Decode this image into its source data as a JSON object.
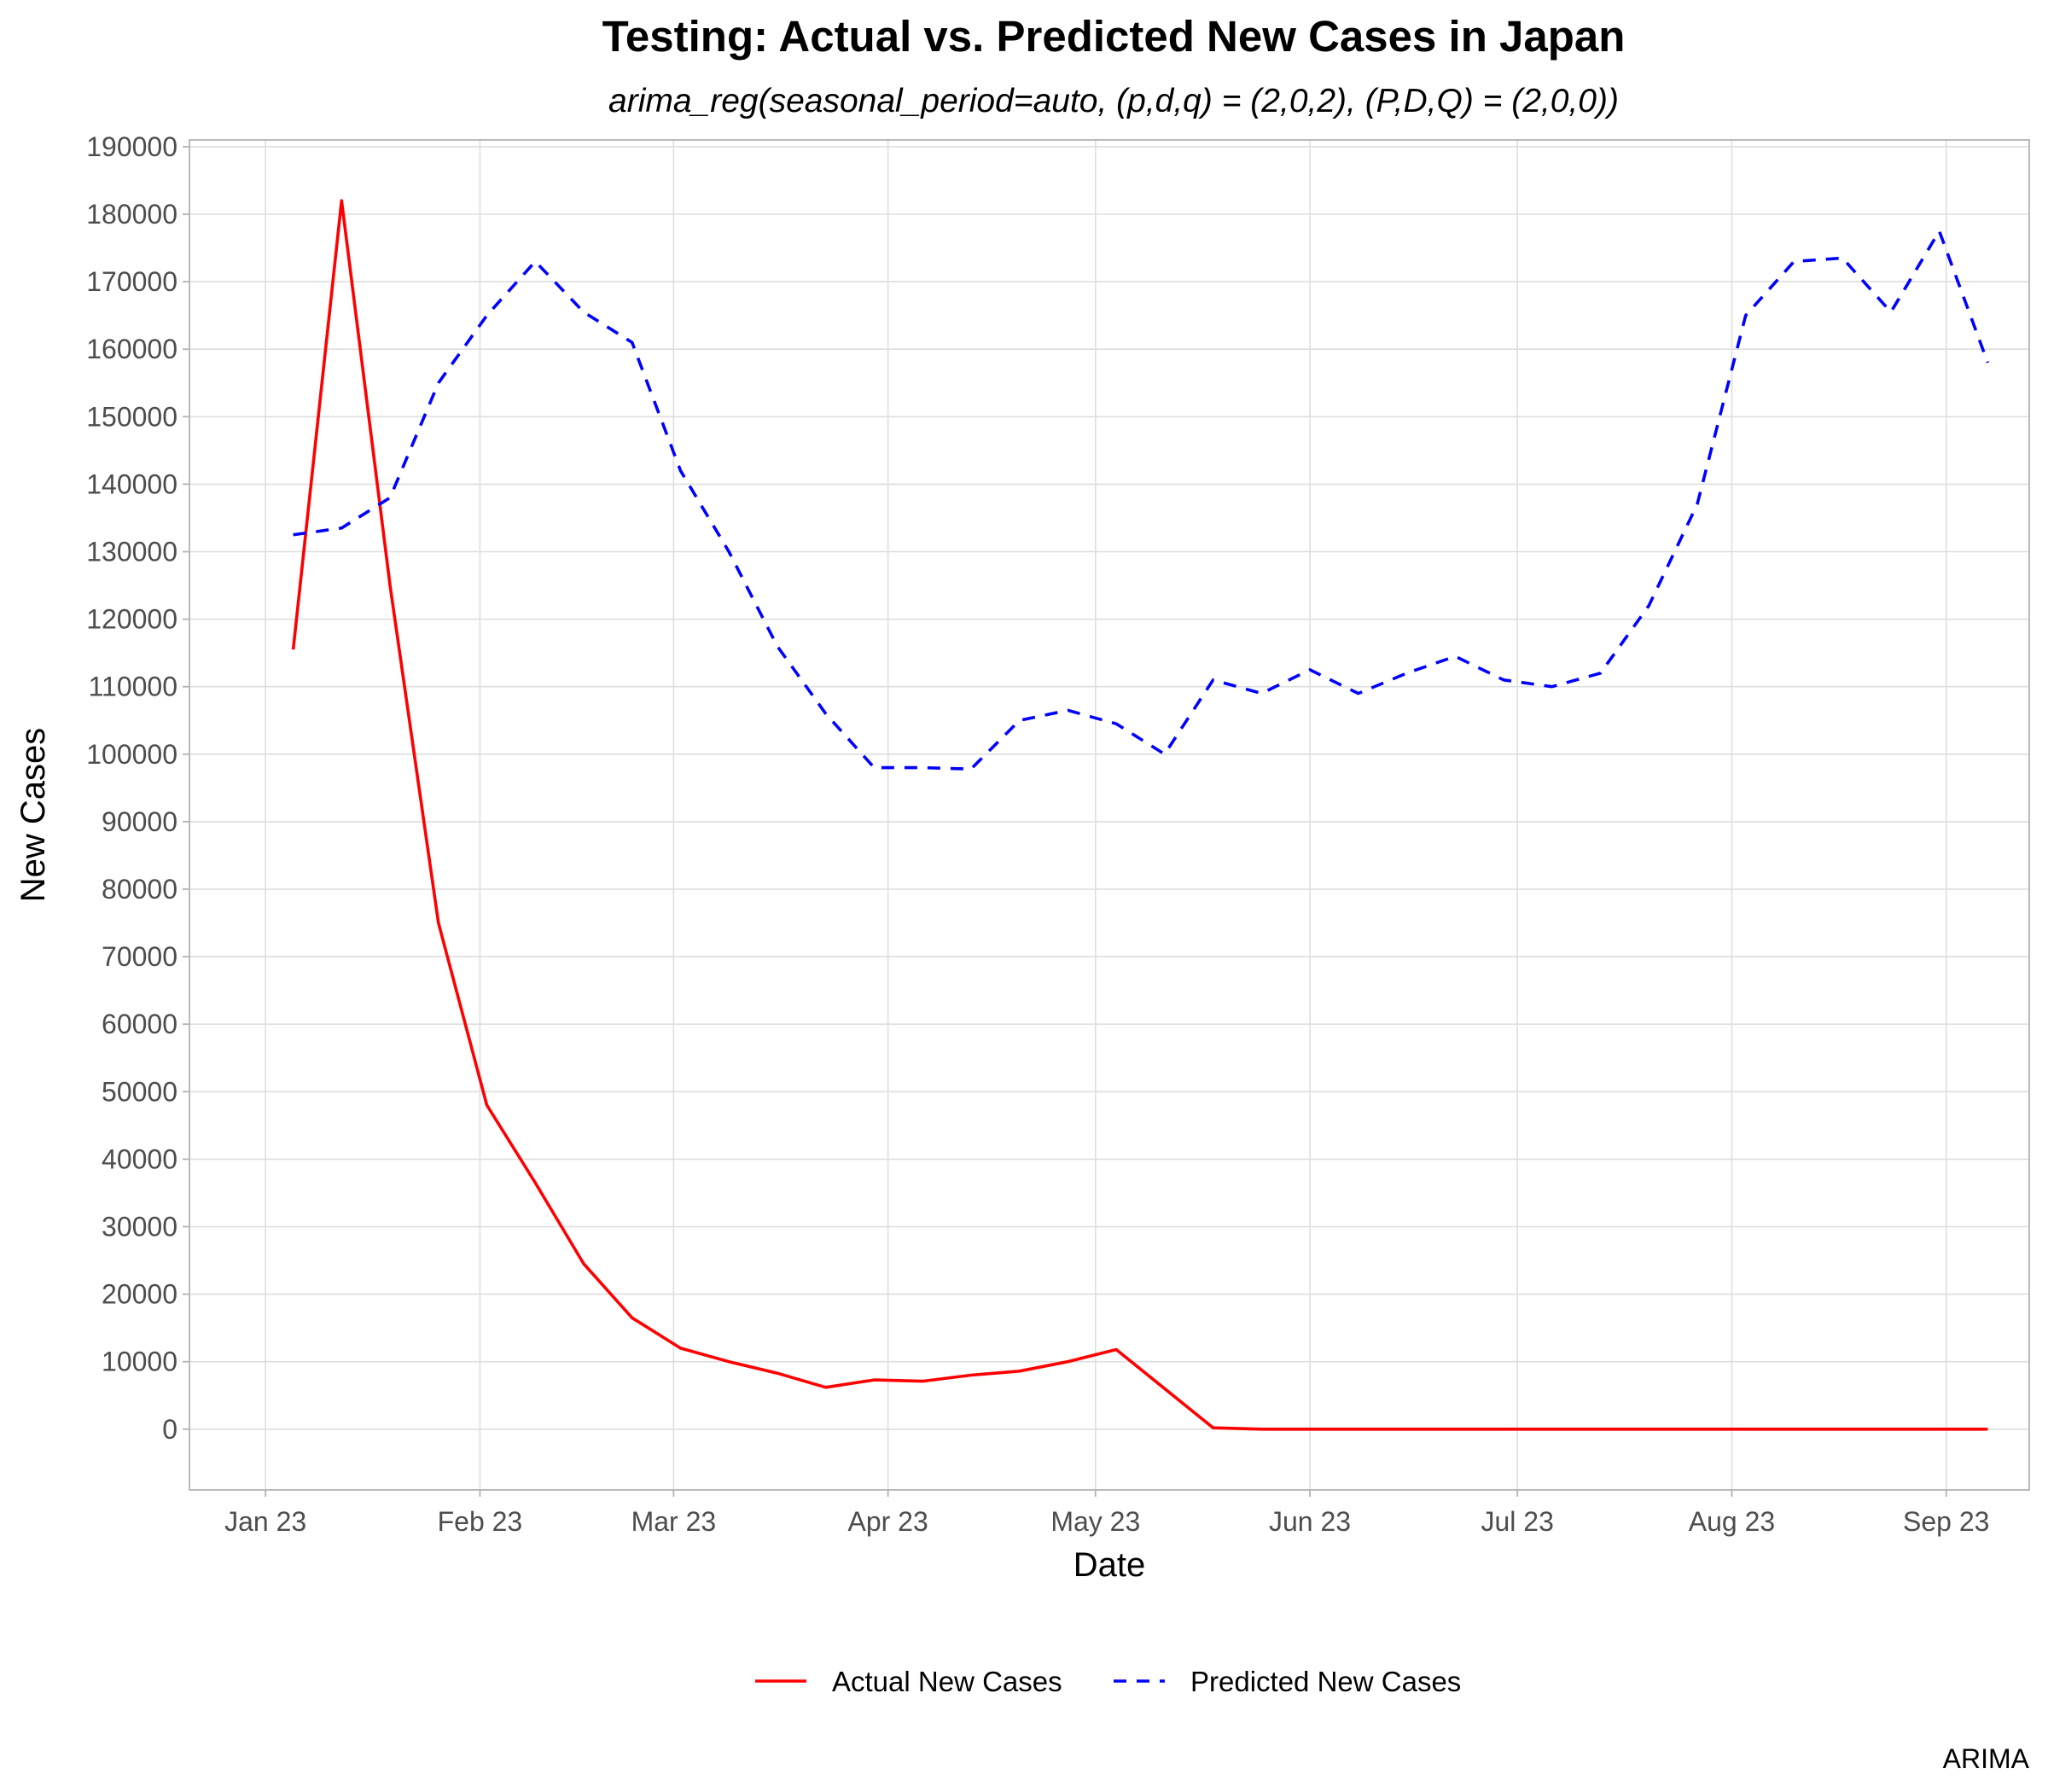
{
  "chart_data": {
    "type": "line",
    "title": "Testing: Actual vs. Predicted New Cases in Japan",
    "subtitle": "arima_reg(seasonal_period=auto, (p,d,q) = (2,0,2), (P,D,Q) = (2,0,0))",
    "xlabel": "Date",
    "ylabel": "New Cases",
    "caption": "ARIMA",
    "x_ticks": [
      "Jan 23",
      "Feb 23",
      "Mar 23",
      "Apr 23",
      "May 23",
      "Jun 23",
      "Jul 23",
      "Aug 23",
      "Sep 23"
    ],
    "x_tick_dates": [
      "2023-01-01",
      "2023-02-01",
      "2023-03-01",
      "2023-04-01",
      "2023-05-01",
      "2023-06-01",
      "2023-07-01",
      "2023-08-01",
      "2023-09-01"
    ],
    "xlim": [
      "2022-12-21",
      "2023-09-13"
    ],
    "y_ticks": [
      0,
      10000,
      20000,
      30000,
      40000,
      50000,
      60000,
      70000,
      80000,
      90000,
      100000,
      110000,
      120000,
      130000,
      140000,
      150000,
      160000,
      170000,
      180000,
      190000
    ],
    "ylim": [
      -9000,
      191000
    ],
    "grid": true,
    "legend_position": "bottom",
    "x": [
      "2023-01-05",
      "2023-01-12",
      "2023-01-19",
      "2023-01-26",
      "2023-02-02",
      "2023-02-09",
      "2023-02-16",
      "2023-02-23",
      "2023-03-02",
      "2023-03-09",
      "2023-03-16",
      "2023-03-23",
      "2023-03-30",
      "2023-04-06",
      "2023-04-13",
      "2023-04-20",
      "2023-04-27",
      "2023-05-04",
      "2023-05-11",
      "2023-05-18",
      "2023-05-25",
      "2023-06-01",
      "2023-06-08",
      "2023-06-15",
      "2023-06-22",
      "2023-06-29",
      "2023-07-06",
      "2023-07-13",
      "2023-07-20",
      "2023-07-27",
      "2023-08-03",
      "2023-08-10",
      "2023-08-17",
      "2023-08-24",
      "2023-08-31",
      "2023-09-07"
    ],
    "series": [
      {
        "name": "Actual New Cases",
        "color": "#ff0000",
        "line_style": "solid",
        "values": [
          115500,
          182000,
          125000,
          75000,
          48000,
          36500,
          24500,
          16500,
          12000,
          10000,
          8300,
          6200,
          7300,
          7100,
          8000,
          8600,
          10000,
          11800,
          6000,
          200,
          0,
          0,
          0,
          0,
          0,
          0,
          0,
          0,
          0,
          0,
          0,
          0,
          0,
          0,
          0,
          0
        ]
      },
      {
        "name": "Predicted New Cases",
        "color": "#0000ff",
        "line_style": "dashed",
        "values": [
          132500,
          133500,
          138000,
          155000,
          165000,
          173000,
          165500,
          161000,
          142000,
          130000,
          116000,
          106000,
          98000,
          98000,
          97800,
          105000,
          106500,
          104500,
          100000,
          111000,
          109000,
          112500,
          109000,
          112000,
          114500,
          111000,
          110000,
          112000,
          122000,
          137000,
          165000,
          173000,
          173500,
          165500,
          177500,
          158000
        ]
      }
    ]
  }
}
